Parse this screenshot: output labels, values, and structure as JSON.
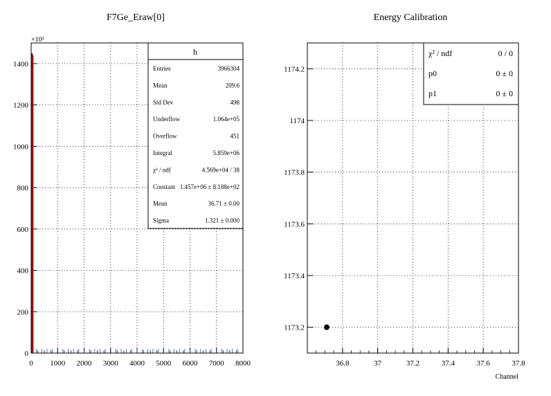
{
  "chart_data": [
    {
      "type": "bar",
      "title": "F7Ge_Eraw[0]",
      "xlabel": "",
      "ylabel": "",
      "y_multiplier": "×10³",
      "xlim": [
        0,
        8000
      ],
      "ylim": [
        0,
        1500
      ],
      "x_ticks": [
        "0",
        "1000",
        "2000",
        "3000",
        "4000",
        "5000",
        "6000",
        "7000",
        "8000"
      ],
      "x_tick_values": [
        0,
        1000,
        2000,
        3000,
        4000,
        5000,
        6000,
        7000,
        8000
      ],
      "y_ticks": [
        "0",
        "200",
        "400",
        "600",
        "800",
        "1000",
        "1200",
        "1400"
      ],
      "y_tick_values": [
        0,
        200,
        400,
        600,
        800,
        1000,
        1200,
        1400
      ],
      "grid": true,
      "histogram": [
        {
          "x": 36.7,
          "y": 1450
        }
      ],
      "fit": {
        "mean": 36.71,
        "sigma": 1.321,
        "constant": 1457
      },
      "stats_box": {
        "name": "h",
        "rows": [
          {
            "label": "Entries",
            "value": "3966304"
          },
          {
            "label": "Mean",
            "value": "209.6"
          },
          {
            "label": "Std Dev",
            "value": "498"
          },
          {
            "label": "Underflow",
            "value": "1.064e+05"
          },
          {
            "label": "Overflow",
            "value": "451"
          },
          {
            "label": "Integral",
            "value": "5.859e+06"
          },
          {
            "label": "χ² / ndf",
            "value": "4.569e+04 / 38"
          },
          {
            "label": "Constant",
            "value": "1.457e+06 ± 8.188e+02"
          },
          {
            "label": "Mean",
            "value": "36.71 ± 0.00"
          },
          {
            "label": "Sigma",
            "value": "1.321 ± 0.000"
          }
        ]
      }
    },
    {
      "type": "scatter",
      "title": "Energy Calibration",
      "xlabel": "Channel",
      "ylabel": "",
      "xlim": [
        36.6,
        37.8
      ],
      "ylim": [
        1173.1,
        1174.3
      ],
      "x_ticks": [
        "36.8",
        "37",
        "37.2",
        "37.4",
        "37.6",
        "37.8"
      ],
      "x_tick_values": [
        36.8,
        37.0,
        37.2,
        37.4,
        37.6,
        37.8
      ],
      "y_ticks": [
        "1173.2",
        "1173.4",
        "1173.6",
        "1173.8",
        "1174",
        "1174.2"
      ],
      "y_tick_values": [
        1173.2,
        1173.4,
        1173.6,
        1173.8,
        1174.0,
        1174.2
      ],
      "grid": true,
      "points": [
        {
          "x": 36.71,
          "y": 1173.2
        }
      ],
      "stats_box": {
        "rows": [
          {
            "label": "χ² / ndf",
            "value": "0 / 0"
          },
          {
            "label": "p0",
            "value": "0 ±    0"
          },
          {
            "label": "p1",
            "value": "0 ±    0"
          }
        ]
      }
    }
  ]
}
